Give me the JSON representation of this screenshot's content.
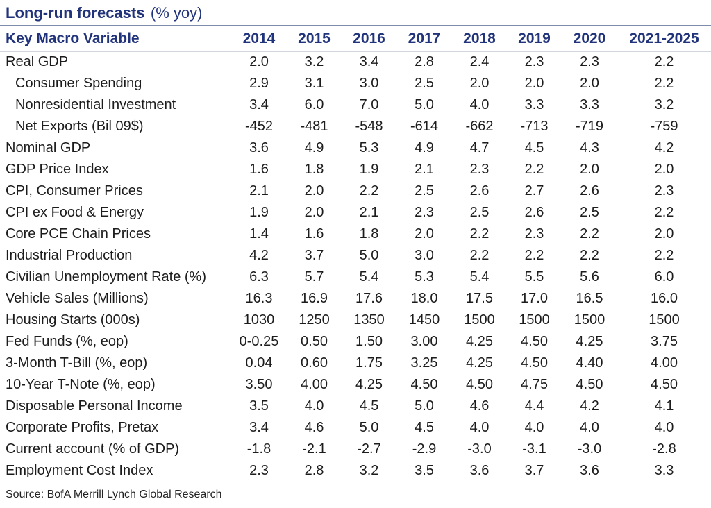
{
  "title": {
    "main": "Long-run forecasts",
    "suffix": "(% yoy)"
  },
  "source": "Source: BofA Merrill Lynch Global Research",
  "colors": {
    "accent_navy": "#21337a",
    "data_text": "#1c1c1c",
    "title_rule": "#7e8cab",
    "header_rule": "#d0d5de",
    "background": "#ffffff"
  },
  "chart_data": {
    "type": "table",
    "title": "Long-run forecasts (% yoy)",
    "header_label": "Key Macro Variable",
    "columns": [
      "2014",
      "2015",
      "2016",
      "2017",
      "2018",
      "2019",
      "2020",
      "2021-2025"
    ],
    "rows": [
      {
        "label": "Real GDP",
        "indent": false,
        "values": [
          "2.0",
          "3.2",
          "3.4",
          "2.8",
          "2.4",
          "2.3",
          "2.3",
          "2.2"
        ]
      },
      {
        "label": "Consumer Spending",
        "indent": true,
        "values": [
          "2.9",
          "3.1",
          "3.0",
          "2.5",
          "2.0",
          "2.0",
          "2.0",
          "2.2"
        ]
      },
      {
        "label": "Nonresidential Investment",
        "indent": true,
        "values": [
          "3.4",
          "6.0",
          "7.0",
          "5.0",
          "4.0",
          "3.3",
          "3.3",
          "3.2"
        ]
      },
      {
        "label": "Net Exports (Bil 09$)",
        "indent": true,
        "values": [
          "-452",
          "-481",
          "-548",
          "-614",
          "-662",
          "-713",
          "-719",
          "-759"
        ]
      },
      {
        "label": "Nominal GDP",
        "indent": false,
        "values": [
          "3.6",
          "4.9",
          "5.3",
          "4.9",
          "4.7",
          "4.5",
          "4.3",
          "4.2"
        ]
      },
      {
        "label": "GDP Price Index",
        "indent": false,
        "values": [
          "1.6",
          "1.8",
          "1.9",
          "2.1",
          "2.3",
          "2.2",
          "2.0",
          "2.0"
        ]
      },
      {
        "label": "CPI, Consumer Prices",
        "indent": false,
        "values": [
          "2.1",
          "2.0",
          "2.2",
          "2.5",
          "2.6",
          "2.7",
          "2.6",
          "2.3"
        ]
      },
      {
        "label": "CPI ex Food & Energy",
        "indent": false,
        "values": [
          "1.9",
          "2.0",
          "2.1",
          "2.3",
          "2.5",
          "2.6",
          "2.5",
          "2.2"
        ]
      },
      {
        "label": "Core PCE Chain Prices",
        "indent": false,
        "values": [
          "1.4",
          "1.6",
          "1.8",
          "2.0",
          "2.2",
          "2.3",
          "2.2",
          "2.0"
        ]
      },
      {
        "label": "Industrial Production",
        "indent": false,
        "values": [
          "4.2",
          "3.7",
          "5.0",
          "3.0",
          "2.2",
          "2.2",
          "2.2",
          "2.2"
        ]
      },
      {
        "label": "Civilian Unemployment Rate (%)",
        "indent": false,
        "values": [
          "6.3",
          "5.7",
          "5.4",
          "5.3",
          "5.4",
          "5.5",
          "5.6",
          "6.0"
        ]
      },
      {
        "label": "Vehicle Sales (Millions)",
        "indent": false,
        "values": [
          "16.3",
          "16.9",
          "17.6",
          "18.0",
          "17.5",
          "17.0",
          "16.5",
          "16.0"
        ]
      },
      {
        "label": "Housing Starts (000s)",
        "indent": false,
        "values": [
          "1030",
          "1250",
          "1350",
          "1450",
          "1500",
          "1500",
          "1500",
          "1500"
        ]
      },
      {
        "label": "Fed Funds (%, eop)",
        "indent": false,
        "values": [
          "0-0.25",
          "0.50",
          "1.50",
          "3.00",
          "4.25",
          "4.50",
          "4.25",
          "3.75"
        ]
      },
      {
        "label": "3-Month T-Bill (%, eop)",
        "indent": false,
        "values": [
          "0.04",
          "0.60",
          "1.75",
          "3.25",
          "4.25",
          "4.50",
          "4.40",
          "4.00"
        ]
      },
      {
        "label": "10-Year T-Note (%, eop)",
        "indent": false,
        "values": [
          "3.50",
          "4.00",
          "4.25",
          "4.50",
          "4.50",
          "4.75",
          "4.50",
          "4.50"
        ]
      },
      {
        "label": "Disposable Personal Income",
        "indent": false,
        "values": [
          "3.5",
          "4.0",
          "4.5",
          "5.0",
          "4.6",
          "4.4",
          "4.2",
          "4.1"
        ]
      },
      {
        "label": "Corporate Profits, Pretax",
        "indent": false,
        "values": [
          "3.4",
          "4.6",
          "5.0",
          "4.5",
          "4.0",
          "4.0",
          "4.0",
          "4.0"
        ]
      },
      {
        "label": "Current account (% of GDP)",
        "indent": false,
        "values": [
          "-1.8",
          "-2.1",
          "-2.7",
          "-2.9",
          "-3.0",
          "-3.1",
          "-3.0",
          "-2.8"
        ]
      },
      {
        "label": "Employment Cost Index",
        "indent": false,
        "values": [
          "2.3",
          "2.8",
          "3.2",
          "3.5",
          "3.6",
          "3.7",
          "3.6",
          "3.3"
        ]
      }
    ]
  }
}
